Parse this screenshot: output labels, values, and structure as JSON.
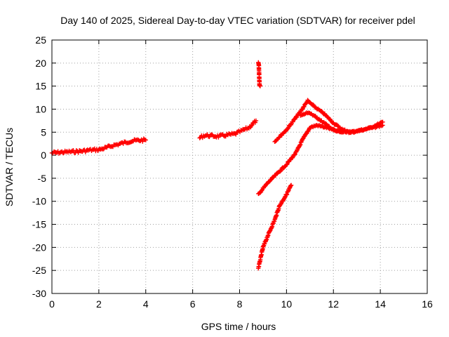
{
  "chart_data": {
    "type": "scatter",
    "title": "Day 140 of 2025, Sidereal Day-to-day VTEC variation (SDTVAR) for receiver pdel",
    "xlabel": "GPS time / hours",
    "ylabel": "SDTVAR / TECUs",
    "xlim": [
      0,
      16
    ],
    "ylim": [
      -30,
      25
    ],
    "xticks": [
      0,
      2,
      4,
      6,
      8,
      10,
      12,
      14,
      16
    ],
    "yticks": [
      -30,
      -25,
      -20,
      -15,
      -10,
      -5,
      0,
      5,
      10,
      15,
      20,
      25
    ],
    "grid": true,
    "marker": "+",
    "color": "#ff0000",
    "series": [
      {
        "name": "seg1",
        "x": [
          0,
          0.3,
          0.6,
          1.0,
          1.3,
          1.6,
          2.0,
          2.3,
          2.6,
          3.0,
          3.3,
          3.6,
          4.0
        ],
        "y": [
          0.5,
          0.6,
          0.7,
          0.8,
          0.9,
          1.1,
          1.2,
          1.6,
          2.1,
          2.6,
          3.0,
          3.2,
          3.3
        ]
      },
      {
        "name": "seg2",
        "x": [
          6.3,
          6.5,
          6.8,
          7.1,
          7.5,
          7.8,
          8.1,
          8.4,
          8.7
        ],
        "y": [
          3.8,
          4.3,
          4.2,
          4.1,
          4.4,
          4.6,
          5.3,
          6.0,
          7.5
        ]
      },
      {
        "name": "isolated",
        "x": [
          8.8,
          8.82,
          8.85,
          8.88
        ],
        "y": [
          20,
          19.5,
          15.2,
          15.0
        ]
      },
      {
        "name": "upper",
        "x": [
          9.5,
          9.8,
          10.0,
          10.3,
          10.6,
          10.9,
          11.2,
          11.6,
          12.0,
          12.4,
          12.8,
          13.2,
          13.6,
          14.1
        ],
        "y": [
          3,
          4.5,
          5.5,
          7.5,
          9.5,
          11.8,
          10.5,
          9.0,
          7.0,
          5.5,
          5.0,
          5.4,
          6.0,
          7.2
        ]
      },
      {
        "name": "middle",
        "x": [
          8.8,
          9.2,
          9.6,
          10.0,
          10.4,
          10.7,
          11.0,
          11.3,
          11.7,
          12.2,
          12.7,
          13.2,
          13.7,
          14.1
        ],
        "y": [
          -8.5,
          -6.0,
          -4.0,
          -2.0,
          0.5,
          3.5,
          6.0,
          6.5,
          6.0,
          5.2,
          5.0,
          5.5,
          6.0,
          6.5
        ]
      },
      {
        "name": "lower",
        "x": [
          8.8,
          9.0,
          9.2,
          9.5,
          9.7,
          10.0,
          10.2
        ],
        "y": [
          -24.5,
          -20.0,
          -17.5,
          -14.0,
          -11.0,
          -8.5,
          -6.5
        ]
      },
      {
        "name": "branch",
        "x": [
          10.6,
          10.9,
          11.2,
          11.6,
          12.0,
          12.4
        ],
        "y": [
          8.5,
          9.2,
          8.5,
          7.0,
          5.5,
          5.0
        ]
      }
    ]
  }
}
